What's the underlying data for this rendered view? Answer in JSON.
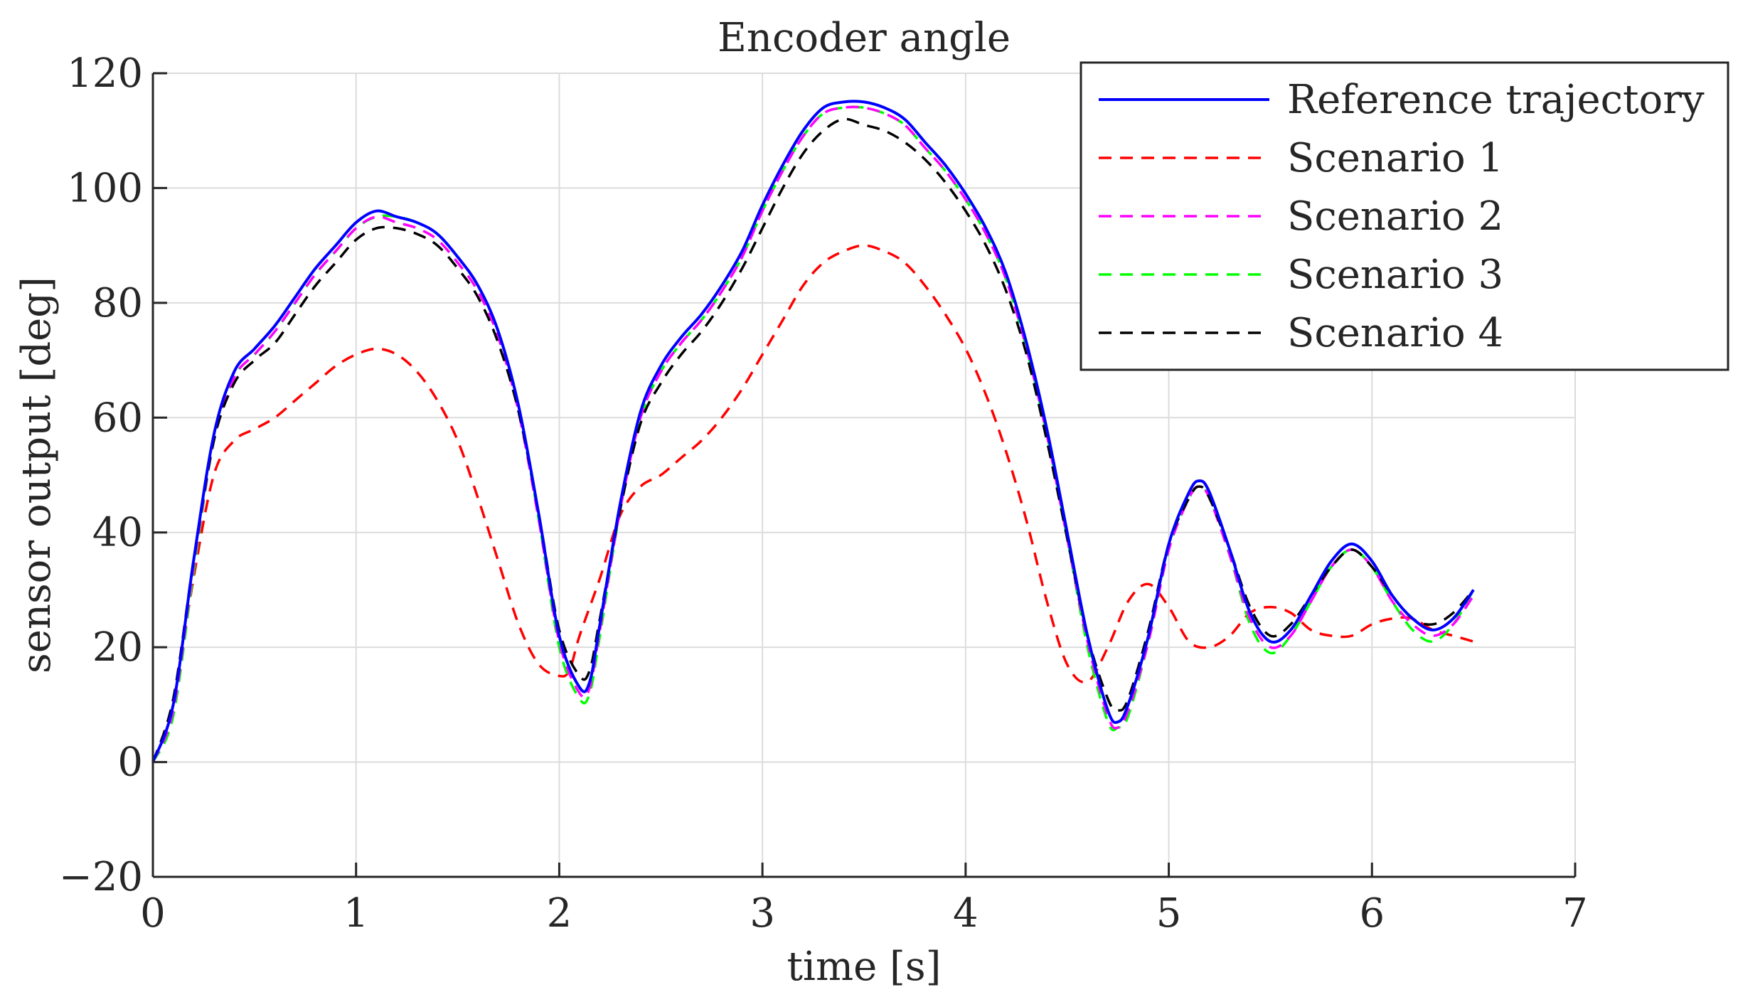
{
  "chart_data": {
    "type": "line",
    "title": "Encoder angle",
    "xlabel": "time [s]",
    "ylabel": "sensor output [deg]",
    "xlim": [
      0,
      7
    ],
    "ylim": [
      -20,
      120
    ],
    "xticks": [
      0,
      1,
      2,
      3,
      4,
      5,
      6,
      7
    ],
    "yticks": [
      -20,
      0,
      20,
      40,
      60,
      80,
      100,
      120
    ],
    "xtick_labels": [
      "0",
      "1",
      "2",
      "3",
      "4",
      "5",
      "6",
      "7"
    ],
    "ytick_labels": [
      "−20",
      "0",
      "20",
      "40",
      "60",
      "80",
      "100",
      "120"
    ],
    "grid": true,
    "legend_position": "top-right",
    "series": [
      {
        "name": "Reference trajectory",
        "color": "#0000ff",
        "dash": "solid",
        "x": [
          0,
          0.1,
          0.2,
          0.3,
          0.4,
          0.5,
          0.6,
          0.7,
          0.8,
          0.9,
          1.0,
          1.1,
          1.2,
          1.3,
          1.4,
          1.5,
          1.6,
          1.7,
          1.8,
          1.9,
          2.0,
          2.1,
          2.15,
          2.2,
          2.3,
          2.4,
          2.5,
          2.6,
          2.7,
          2.8,
          2.9,
          3.0,
          3.1,
          3.2,
          3.3,
          3.4,
          3.5,
          3.6,
          3.7,
          3.8,
          3.9,
          4.0,
          4.1,
          4.2,
          4.3,
          4.4,
          4.5,
          4.6,
          4.7,
          4.75,
          4.8,
          4.9,
          5.0,
          5.1,
          5.15,
          5.2,
          5.3,
          5.4,
          5.5,
          5.6,
          5.7,
          5.8,
          5.9,
          6.0,
          6.1,
          6.2,
          6.3,
          6.4,
          6.5
        ],
        "y": [
          0,
          10,
          35,
          57,
          68,
          72,
          76,
          81,
          86,
          90,
          94,
          96,
          95,
          94,
          92,
          88,
          83,
          75,
          62,
          43,
          22,
          13,
          14,
          24,
          45,
          61,
          69,
          74,
          78,
          83,
          89,
          97,
          104,
          110,
          114,
          115,
          115,
          114,
          112,
          108,
          104,
          99,
          93,
          85,
          73,
          58,
          40,
          22,
          9,
          7,
          10,
          22,
          38,
          47,
          49,
          47,
          37,
          26,
          21,
          23,
          29,
          35,
          38,
          35,
          29,
          25,
          23,
          25,
          30
        ]
      },
      {
        "name": "Scenario 1",
        "color": "#ff0000",
        "dash": "dashed",
        "x": [
          0,
          0.1,
          0.2,
          0.3,
          0.4,
          0.5,
          0.6,
          0.7,
          0.8,
          0.9,
          1.0,
          1.1,
          1.2,
          1.3,
          1.4,
          1.5,
          1.6,
          1.7,
          1.8,
          1.9,
          2.0,
          2.05,
          2.1,
          2.2,
          2.3,
          2.4,
          2.5,
          2.6,
          2.7,
          2.8,
          2.9,
          3.0,
          3.1,
          3.2,
          3.3,
          3.4,
          3.5,
          3.6,
          3.7,
          3.8,
          3.9,
          4.0,
          4.1,
          4.2,
          4.3,
          4.4,
          4.5,
          4.6,
          4.7,
          4.8,
          4.9,
          5.0,
          5.1,
          5.2,
          5.3,
          5.4,
          5.5,
          5.6,
          5.7,
          5.8,
          5.9,
          6.0,
          6.1,
          6.2,
          6.3,
          6.4,
          6.5
        ],
        "y": [
          0,
          10,
          32,
          50,
          56,
          58,
          60,
          63,
          66,
          69,
          71,
          72,
          71,
          68,
          63,
          56,
          46,
          35,
          24,
          17,
          15,
          16,
          22,
          32,
          43,
          48,
          50,
          53,
          56,
          60,
          65,
          71,
          77,
          83,
          87,
          89,
          90,
          89,
          87,
          83,
          78,
          72,
          64,
          54,
          42,
          28,
          17,
          14,
          20,
          28,
          31,
          27,
          21,
          20,
          22,
          26,
          27,
          26,
          23,
          22,
          22,
          24,
          25,
          25,
          23,
          22,
          21
        ]
      },
      {
        "name": "Scenario 2",
        "color": "#ff00ff",
        "dash": "dashed",
        "x": [
          0,
          0.1,
          0.2,
          0.3,
          0.4,
          0.5,
          0.6,
          0.7,
          0.8,
          0.9,
          1.0,
          1.1,
          1.2,
          1.3,
          1.4,
          1.5,
          1.6,
          1.7,
          1.8,
          1.9,
          2.0,
          2.1,
          2.15,
          2.2,
          2.3,
          2.4,
          2.5,
          2.6,
          2.7,
          2.8,
          2.9,
          3.0,
          3.1,
          3.2,
          3.3,
          3.4,
          3.5,
          3.6,
          3.7,
          3.8,
          3.9,
          4.0,
          4.1,
          4.2,
          4.3,
          4.4,
          4.5,
          4.6,
          4.7,
          4.75,
          4.8,
          4.9,
          5.0,
          5.1,
          5.15,
          5.2,
          5.3,
          5.4,
          5.5,
          5.6,
          5.7,
          5.8,
          5.9,
          6.0,
          6.1,
          6.2,
          6.3,
          6.4,
          6.5
        ],
        "y": [
          0,
          9,
          34,
          56,
          67,
          71,
          75,
          80,
          85,
          89,
          93,
          95,
          94,
          93,
          91,
          87,
          82,
          74,
          61,
          42,
          21,
          12,
          13,
          23,
          44,
          60,
          68,
          73,
          77,
          82,
          88,
          96,
          103,
          109,
          113,
          114,
          114,
          113,
          111,
          107,
          103,
          98,
          92,
          84,
          72,
          57,
          39,
          21,
          8,
          6,
          9,
          21,
          37,
          46,
          48,
          46,
          36,
          25,
          20,
          22,
          28,
          34,
          37,
          34,
          28,
          24,
          22,
          24,
          29
        ]
      },
      {
        "name": "Scenario 3",
        "color": "#00ff00",
        "dash": "dashed",
        "x": [
          0,
          0.1,
          0.2,
          0.3,
          0.4,
          0.5,
          0.6,
          0.7,
          0.8,
          0.9,
          1.0,
          1.1,
          1.2,
          1.3,
          1.4,
          1.5,
          1.6,
          1.7,
          1.8,
          1.9,
          2.0,
          2.1,
          2.15,
          2.2,
          2.3,
          2.4,
          2.5,
          2.6,
          2.7,
          2.8,
          2.9,
          3.0,
          3.1,
          3.2,
          3.3,
          3.4,
          3.5,
          3.6,
          3.7,
          3.8,
          3.9,
          4.0,
          4.1,
          4.2,
          4.3,
          4.4,
          4.5,
          4.6,
          4.7,
          4.75,
          4.8,
          4.9,
          5.0,
          5.1,
          5.15,
          5.2,
          5.3,
          5.4,
          5.5,
          5.6,
          5.7,
          5.8,
          5.9,
          6.0,
          6.1,
          6.2,
          6.3,
          6.4,
          6.5
        ],
        "y": [
          0,
          8,
          33,
          56,
          67,
          71,
          75,
          80,
          85,
          89,
          93,
          95,
          95,
          94,
          92,
          88,
          83,
          75,
          62,
          42,
          20,
          11,
          12,
          22,
          44,
          60,
          68,
          73,
          77,
          82,
          88,
          96,
          103,
          109,
          113,
          114,
          114,
          113,
          111,
          107,
          103,
          98,
          92,
          84,
          72,
          57,
          39,
          20,
          7,
          6,
          8,
          21,
          37,
          46,
          48,
          46,
          36,
          24,
          19,
          22,
          28,
          34,
          37,
          34,
          28,
          23,
          21,
          24,
          30
        ]
      },
      {
        "name": "Scenario 4",
        "color": "#000000",
        "dash": "dashed",
        "x": [
          0,
          0.1,
          0.2,
          0.3,
          0.4,
          0.5,
          0.6,
          0.7,
          0.8,
          0.9,
          1.0,
          1.1,
          1.2,
          1.3,
          1.4,
          1.5,
          1.6,
          1.7,
          1.8,
          1.9,
          2.0,
          2.1,
          2.15,
          2.2,
          2.3,
          2.4,
          2.5,
          2.6,
          2.7,
          2.8,
          2.9,
          3.0,
          3.1,
          3.2,
          3.3,
          3.4,
          3.5,
          3.6,
          3.7,
          3.8,
          3.9,
          4.0,
          4.1,
          4.2,
          4.3,
          4.4,
          4.5,
          4.6,
          4.7,
          4.75,
          4.8,
          4.9,
          5.0,
          5.1,
          5.15,
          5.2,
          5.3,
          5.4,
          5.5,
          5.6,
          5.7,
          5.8,
          5.9,
          6.0,
          6.1,
          6.2,
          6.3,
          6.4,
          6.5
        ],
        "y": [
          0,
          11,
          35,
          56,
          66,
          70,
          73,
          78,
          83,
          87,
          91,
          93,
          93,
          92,
          90,
          86,
          81,
          73,
          61,
          43,
          23,
          15,
          16,
          25,
          44,
          59,
          66,
          71,
          75,
          80,
          86,
          93,
          100,
          106,
          110,
          112,
          111,
          110,
          108,
          105,
          101,
          96,
          90,
          82,
          71,
          56,
          39,
          22,
          11,
          9,
          11,
          23,
          38,
          46,
          48,
          46,
          37,
          27,
          22,
          24,
          29,
          34,
          37,
          34,
          29,
          25,
          24,
          26,
          30
        ]
      }
    ]
  }
}
